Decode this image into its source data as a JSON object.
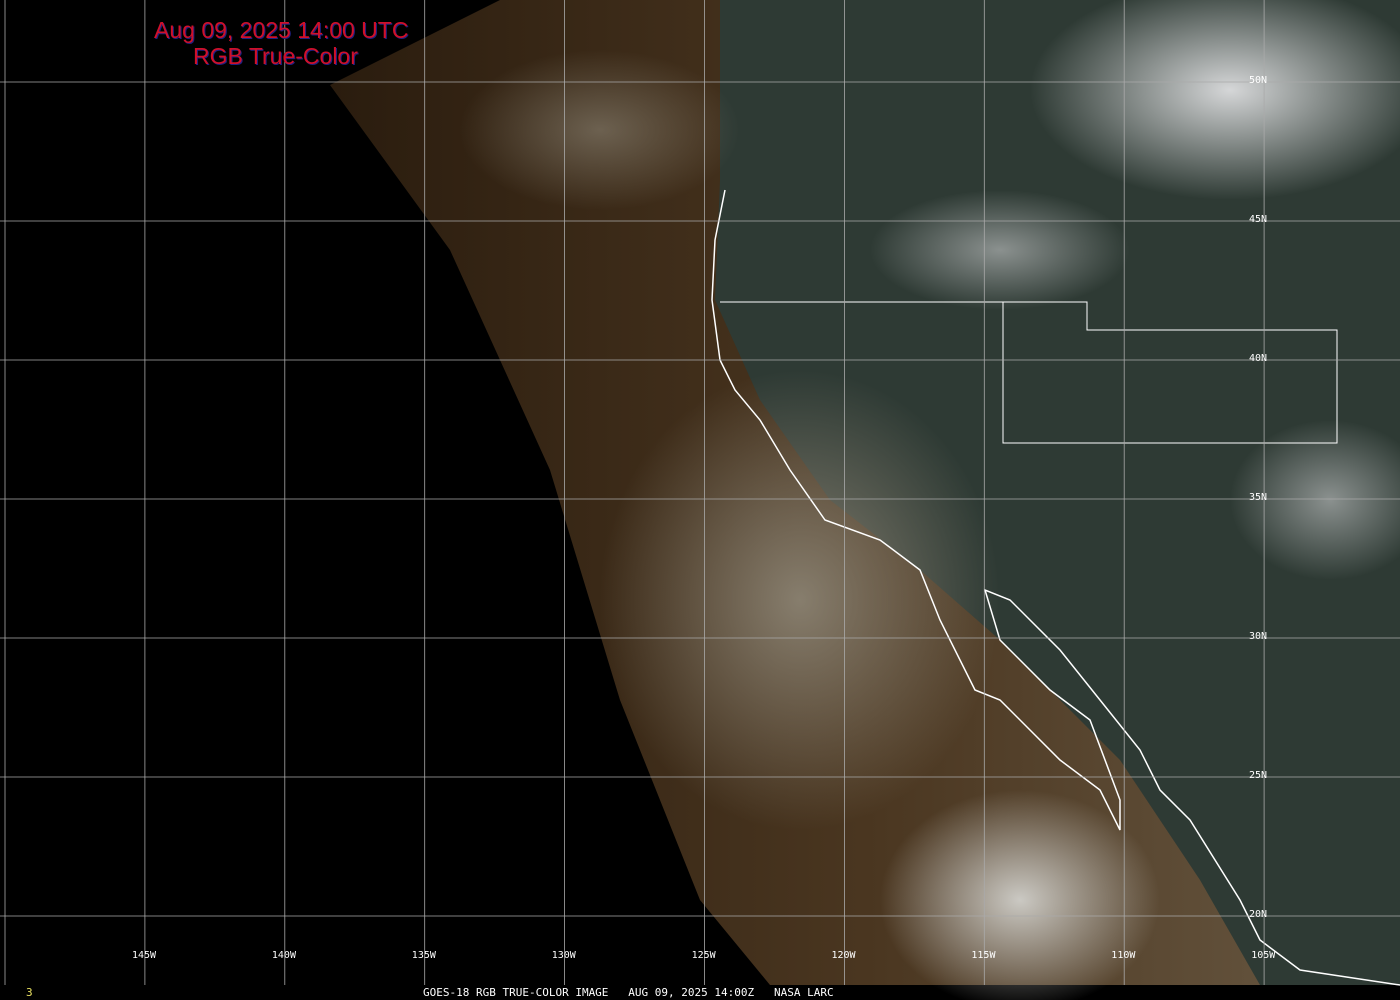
{
  "title": {
    "line1": "Aug 09, 2025 14:00 UTC",
    "line2": "RGB True-Color",
    "color": "#d0102a"
  },
  "grid": {
    "lon_labels": [
      "145W",
      "140W",
      "135W",
      "130W",
      "125W",
      "120W",
      "115W",
      "110W",
      "105W"
    ],
    "lat_labels": [
      "50N",
      "45N",
      "40N",
      "35N",
      "30N",
      "25N",
      "20N"
    ]
  },
  "footer": {
    "frame": "3",
    "caption": "GOES-18 RGB TRUE-COLOR IMAGE   AUG 09, 2025 14:00Z   NASA LARC"
  }
}
